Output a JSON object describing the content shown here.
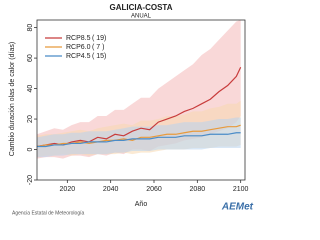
{
  "chart_data": {
    "type": "line",
    "title": "GALICIA-COSTA",
    "subtitle": "ANUAL",
    "ylabel": "Cambio duración olas de calor (días)",
    "xlabel": "Año",
    "x": [
      2006,
      2010,
      2014,
      2018,
      2022,
      2026,
      2030,
      2034,
      2038,
      2042,
      2046,
      2050,
      2054,
      2058,
      2062,
      2066,
      2070,
      2074,
      2078,
      2082,
      2086,
      2090,
      2094,
      2098,
      2100
    ],
    "xlim": [
      2006,
      2102
    ],
    "xticks": [
      2020,
      2040,
      2060,
      2080,
      2100
    ],
    "ylim": [
      -20,
      85
    ],
    "yticks": [
      -20,
      0,
      20,
      40,
      60,
      80
    ],
    "series": [
      {
        "name": "RCP8.5",
        "count_label": "( 19)",
        "color": "#c83c3c",
        "band_color": "#f4b8b8",
        "values": [
          2,
          3,
          4,
          3,
          5,
          6,
          5,
          8,
          7,
          10,
          9,
          12,
          14,
          13,
          18,
          20,
          22,
          25,
          27,
          30,
          33,
          38,
          42,
          48,
          54
        ],
        "upper": [
          10,
          12,
          14,
          13,
          16,
          18,
          18,
          22,
          22,
          26,
          26,
          30,
          34,
          34,
          40,
          44,
          48,
          52,
          56,
          62,
          66,
          72,
          78,
          84,
          85
        ],
        "lower": [
          -6,
          -5,
          -5,
          -6,
          -4,
          -4,
          -5,
          -3,
          -4,
          -2,
          -3,
          0,
          0,
          -1,
          2,
          3,
          4,
          6,
          7,
          8,
          10,
          12,
          14,
          18,
          22
        ]
      },
      {
        "name": "RCP6.0",
        "count_label": "( 7 )",
        "color": "#e89a3c",
        "band_color": "#f8d8b0",
        "values": [
          2,
          3,
          3,
          4,
          4,
          5,
          4,
          5,
          6,
          6,
          7,
          6,
          8,
          8,
          9,
          10,
          10,
          11,
          12,
          12,
          13,
          14,
          15,
          15,
          16
        ],
        "upper": [
          9,
          10,
          10,
          11,
          12,
          13,
          12,
          14,
          15,
          16,
          17,
          16,
          19,
          19,
          20,
          22,
          22,
          23,
          25,
          25,
          27,
          28,
          30,
          30,
          32
        ],
        "lower": [
          -5,
          -4,
          -4,
          -3,
          -4,
          -3,
          -4,
          -3,
          -3,
          -3,
          -2,
          -3,
          -2,
          -2,
          -1,
          0,
          0,
          0,
          1,
          1,
          1,
          2,
          2,
          2,
          3
        ]
      },
      {
        "name": "RCP4.5",
        "count_label": "( 15)",
        "color": "#4a8cc8",
        "band_color": "#b8d4ee",
        "values": [
          2,
          2,
          3,
          3,
          4,
          4,
          5,
          5,
          5,
          6,
          6,
          7,
          7,
          7,
          8,
          8,
          8,
          9,
          9,
          9,
          10,
          10,
          10,
          11,
          11
        ],
        "upper": [
          8,
          9,
          10,
          10,
          11,
          11,
          12,
          12,
          12,
          13,
          14,
          15,
          15,
          15,
          16,
          16,
          17,
          18,
          18,
          18,
          19,
          20,
          20,
          21,
          21
        ],
        "lower": [
          -5,
          -5,
          -4,
          -4,
          -3,
          -3,
          -3,
          -3,
          -3,
          -2,
          -2,
          -1,
          -1,
          -1,
          0,
          0,
          0,
          0,
          0,
          0,
          1,
          1,
          1,
          1,
          1
        ]
      }
    ]
  },
  "footer": {
    "agency": "Agencia Estatal de Meteorología",
    "logo": "AEMet"
  }
}
